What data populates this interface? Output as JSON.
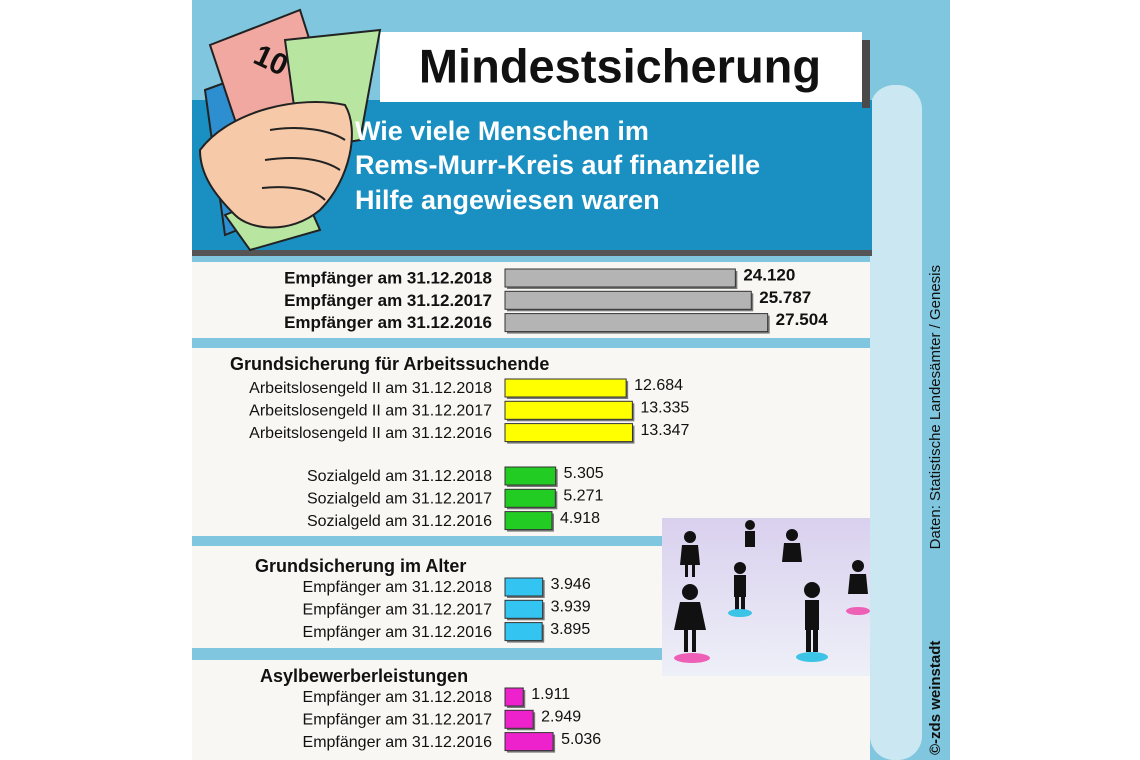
{
  "header": {
    "title": "Mindestsicherung",
    "subtitle": [
      "Wie viele Menschen im",
      "Rems-Murr-Kreis auf finanzielle",
      "Hilfe angewiesen waren"
    ]
  },
  "source": "Daten: Statistische Landesämter / Genesis",
  "credit": "©-zds weinstadt",
  "chart_data": [
    {
      "type": "bar",
      "orientation": "horizontal",
      "color": "#b4b4b4",
      "categories": [
        "Empfänger am 31.12.2018",
        "Empfänger am 31.12.2017",
        "Empfänger am 31.12.2016"
      ],
      "values": [
        24120,
        25787,
        27504
      ],
      "value_labels": [
        "24.120",
        "25.787",
        "27.504"
      ]
    },
    {
      "type": "bar",
      "orientation": "horizontal",
      "color": "#ffff00",
      "title": "Grundsicherung für Arbeitssuchende",
      "categories": [
        "Arbeitslosengeld II am 31.12.2018",
        "Arbeitslosengeld II am 31.12.2017",
        "Arbeitslosengeld II am 31.12.2016"
      ],
      "values": [
        12684,
        13335,
        13347
      ],
      "value_labels": [
        "12.684",
        "13.335",
        "13.347"
      ]
    },
    {
      "type": "bar",
      "orientation": "horizontal",
      "color": "#22cc22",
      "categories": [
        "Sozialgeld am 31.12.2018",
        "Sozialgeld am 31.12.2017",
        "Sozialgeld am 31.12.2016"
      ],
      "values": [
        5305,
        5271,
        4918
      ],
      "value_labels": [
        "5.305",
        "5.271",
        "4.918"
      ]
    },
    {
      "type": "bar",
      "orientation": "horizontal",
      "color": "#33c4f2",
      "title": "Grundsicherung im Alter",
      "categories": [
        "Empfänger am 31.12.2018",
        "Empfänger am 31.12.2017",
        "Empfänger am 31.12.2016"
      ],
      "values": [
        3946,
        3939,
        3895
      ],
      "value_labels": [
        "3.946",
        "3.939",
        "3.895"
      ]
    },
    {
      "type": "bar",
      "orientation": "horizontal",
      "color": "#ee22cc",
      "title": "Asylbewerberleistungen",
      "categories": [
        "Empfänger am 31.12.2018",
        "Empfänger am 31.12.2017",
        "Empfänger am 31.12.2016"
      ],
      "values": [
        1911,
        2949,
        5036
      ],
      "value_labels": [
        "1.911",
        "2.949",
        "5.036"
      ]
    }
  ]
}
